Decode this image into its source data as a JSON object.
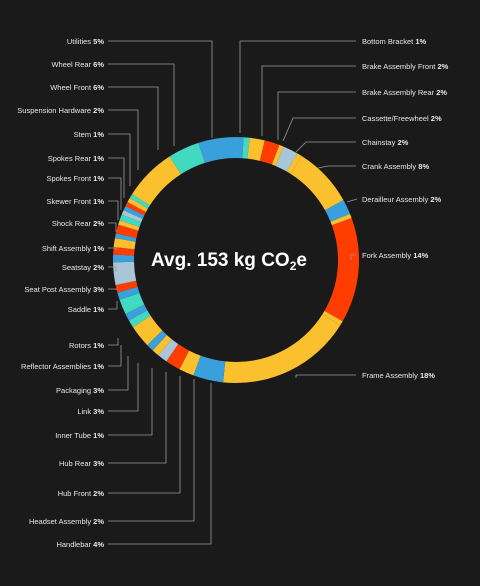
{
  "chart_data": {
    "type": "pie",
    "donut": true,
    "center_label": {
      "prefix": "Avg. 153 kg CO",
      "subscript": "2",
      "suffix": "e"
    },
    "unit": "%",
    "labeled_segments": [
      {
        "name": "Bottom Bracket",
        "value": 1,
        "side": "right"
      },
      {
        "name": "Brake Assembly Front",
        "value": 2,
        "side": "right"
      },
      {
        "name": "Brake Assembly Rear",
        "value": 2,
        "side": "right"
      },
      {
        "name": "Cassette/Freewheel",
        "value": 2,
        "side": "right"
      },
      {
        "name": "Chainstay",
        "value": 2,
        "side": "right"
      },
      {
        "name": "Crank Assembly",
        "value": 8,
        "side": "right"
      },
      {
        "name": "Derailleur Assembly",
        "value": 2,
        "side": "right"
      },
      {
        "name": "Fork Assembly",
        "value": 14,
        "side": "right"
      },
      {
        "name": "Frame Assembly",
        "value": 18,
        "side": "right"
      },
      {
        "name": "Handlebar",
        "value": 4,
        "side": "left"
      },
      {
        "name": "Headset Assembly",
        "value": 2,
        "side": "left"
      },
      {
        "name": "Hub Front",
        "value": 2,
        "side": "left"
      },
      {
        "name": "Hub Rear",
        "value": 3,
        "side": "left"
      },
      {
        "name": "Inner Tube",
        "value": 1,
        "side": "left"
      },
      {
        "name": "Link",
        "value": 3,
        "side": "left"
      },
      {
        "name": "Packaging",
        "value": 3,
        "side": "left"
      },
      {
        "name": "Reflector Assemblies",
        "value": 1,
        "side": "left"
      },
      {
        "name": "Rotors",
        "value": 1,
        "side": "left"
      },
      {
        "name": "Saddle",
        "value": 1,
        "side": "left"
      },
      {
        "name": "Seat Post Assembly",
        "value": 3,
        "side": "left"
      },
      {
        "name": "Seatstay",
        "value": 2,
        "side": "left"
      },
      {
        "name": "Shift Assembly",
        "value": 1,
        "side": "left"
      },
      {
        "name": "Shock Rear",
        "value": 2,
        "side": "left"
      },
      {
        "name": "Skewer Front",
        "value": 1,
        "side": "left"
      },
      {
        "name": "Spokes Front",
        "value": 1,
        "side": "left"
      },
      {
        "name": "Spokes Rear",
        "value": 1,
        "side": "left"
      },
      {
        "name": "Stem",
        "value": 1,
        "side": "left"
      },
      {
        "name": "Suspension Hardware",
        "value": 2,
        "side": "left"
      },
      {
        "name": "Wheel Front",
        "value": 6,
        "side": "left"
      },
      {
        "name": "Wheel Rear",
        "value": 6,
        "side": "left"
      },
      {
        "name": "Utilities",
        "value": 5,
        "side": "left"
      }
    ],
    "ring_segments": [
      {
        "value": 1.0,
        "color": "#3aa0dc"
      },
      {
        "value": 0.8,
        "color": "#41d9c0"
      },
      {
        "value": 2.0,
        "color": "#fbc02d"
      },
      {
        "value": 2.0,
        "color": "#ff3d00"
      },
      {
        "value": 0.6,
        "color": "#fbc02d"
      },
      {
        "value": 2.0,
        "color": "#a9c6d6"
      },
      {
        "value": 0.7,
        "color": "#fbc02d"
      },
      {
        "value": 8.0,
        "color": "#fbc02d"
      },
      {
        "value": 2.0,
        "color": "#3aa0dc"
      },
      {
        "value": 0.6,
        "color": "#fbc02d"
      },
      {
        "value": 14.0,
        "color": "#ff3d00"
      },
      {
        "value": 0.6,
        "color": "#fbc02d"
      },
      {
        "value": 18.0,
        "color": "#fbc02d"
      },
      {
        "value": 4.0,
        "color": "#3aa0dc"
      },
      {
        "value": 2.0,
        "color": "#fbc02d"
      },
      {
        "value": 2.0,
        "color": "#ff3d00"
      },
      {
        "value": 1.3,
        "color": "#a9c6d6"
      },
      {
        "value": 1.0,
        "color": "#fbc02d"
      },
      {
        "value": 1.0,
        "color": "#3aa0dc"
      },
      {
        "value": 3.0,
        "color": "#fbc02d"
      },
      {
        "value": 1.0,
        "color": "#41d9c0"
      },
      {
        "value": 1.0,
        "color": "#3aa0dc"
      },
      {
        "value": 2.0,
        "color": "#41d9c0"
      },
      {
        "value": 1.0,
        "color": "#3aa0dc"
      },
      {
        "value": 1.0,
        "color": "#ff3d00"
      },
      {
        "value": 3.0,
        "color": "#a9c6d6"
      },
      {
        "value": 1.0,
        "color": "#3aa0dc"
      },
      {
        "value": 1.0,
        "color": "#ff3d00"
      },
      {
        "value": 1.2,
        "color": "#fbc02d"
      },
      {
        "value": 0.6,
        "color": "#3aa0dc"
      },
      {
        "value": 1.2,
        "color": "#ff3d00"
      },
      {
        "value": 0.6,
        "color": "#fbc02d"
      },
      {
        "value": 0.8,
        "color": "#41d9c0"
      },
      {
        "value": 0.6,
        "color": "#a9c6d6"
      },
      {
        "value": 0.6,
        "color": "#3aa0dc"
      },
      {
        "value": 0.6,
        "color": "#ff3d00"
      },
      {
        "value": 0.6,
        "color": "#fbc02d"
      },
      {
        "value": 0.6,
        "color": "#41d9c0"
      },
      {
        "value": 7.0,
        "color": "#fbc02d"
      },
      {
        "value": 4.2,
        "color": "#41d9c0"
      },
      {
        "value": 5.0,
        "color": "#3aa0dc"
      }
    ],
    "colors": {
      "yellow": "#fbc02d",
      "orange_red": "#ff3d00",
      "blue": "#3aa0dc",
      "teal": "#41d9c0",
      "light_blue": "#a9c6d6",
      "background": "#1a1a1a"
    }
  }
}
